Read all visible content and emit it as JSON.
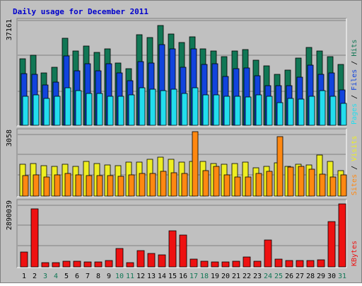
{
  "chart_data": {
    "type": "bar",
    "title": "Daily usage for December 2011",
    "categories": [
      "1",
      "2",
      "3",
      "4",
      "5",
      "6",
      "7",
      "8",
      "9",
      "10",
      "11",
      "12",
      "13",
      "14",
      "15",
      "16",
      "17",
      "18",
      "19",
      "20",
      "21",
      "22",
      "23",
      "24",
      "25",
      "26",
      "27",
      "28",
      "29",
      "30",
      "31"
    ],
    "weekend_days": [
      "3",
      "4",
      "10",
      "11",
      "17",
      "18",
      "24",
      "25",
      "31"
    ],
    "panels": [
      {
        "id": "hits",
        "ymax": 37161,
        "ymax_label": "37161",
        "axis_title": [
          "Pages",
          "Files",
          "Hits"
        ],
        "series": [
          {
            "name": "Hits",
            "color": "#117755",
            "values": [
              23500,
              24800,
              18500,
              20500,
              30800,
              26300,
              28100,
              25800,
              27000,
              22100,
              20000,
              32100,
              31200,
              35500,
              32400,
              29400,
              31500,
              27000,
              26400,
              24300,
              26300,
              26800,
              23200,
              21000,
              18200,
              19600,
              23900,
              27700,
              26300,
              24300,
              21600
            ]
          },
          {
            "name": "Files",
            "color": "#1144dd",
            "values": [
              18300,
              18100,
              14200,
              15400,
              24600,
              19400,
              21800,
              19300,
              21800,
              18700,
              15900,
              22600,
              22200,
              28700,
              27100,
              20700,
              27200,
              21700,
              21900,
              17300,
              20000,
              20400,
              17600,
              14100,
              14000,
              14000,
              17100,
              21300,
              18000,
              18700,
              12500
            ]
          },
          {
            "name": "Pages",
            "color": "#22ddee",
            "values": [
              10400,
              10900,
              9600,
              10200,
              13300,
              12300,
              11400,
              11400,
              10400,
              10400,
              10900,
              13300,
              12900,
              12400,
              12900,
              11400,
              13300,
              10900,
              10900,
              10400,
              10400,
              10000,
              10900,
              10400,
              8000,
              9600,
              9300,
              10400,
              12300,
              10400,
              7800
            ]
          }
        ]
      },
      {
        "id": "visits",
        "ymax": 3058,
        "ymax_label": "3058",
        "axis_title": [
          "Sites",
          "Visits"
        ],
        "series": [
          {
            "name": "Visits",
            "color": "#eeee22",
            "values": [
              1480,
              1520,
              1420,
              1380,
              1500,
              1380,
              1620,
              1540,
              1460,
              1420,
              1600,
              1600,
              1720,
              1820,
              1740,
              1600,
              1620,
              1620,
              1540,
              1500,
              1540,
              1600,
              1320,
              1380,
              1560,
              1400,
              1480,
              1460,
              1920,
              1620,
              1180
            ]
          },
          {
            "name": "Sites",
            "color": "#ff8811",
            "values": [
              960,
              1000,
              900,
              1000,
              1080,
              1010,
              980,
              980,
              960,
              940,
              1000,
              1080,
              1080,
              1160,
              1100,
              1050,
              3020,
              1210,
              1400,
              1010,
              910,
              900,
              1080,
              1160,
              2780,
              1370,
              1400,
              1270,
              1030,
              890,
              1000
            ]
          }
        ]
      },
      {
        "id": "kbytes",
        "ymax": 2890039,
        "ymax_label": "2890039",
        "axis_title": [
          "KBytes"
        ],
        "series": [
          {
            "name": "KBytes",
            "color": "#ee1111",
            "values": [
              650000,
              2580000,
              180000,
              180000,
              240000,
              240000,
              220000,
              220000,
              280000,
              830000,
              200000,
              730000,
              610000,
              520000,
              1600000,
              1400000,
              330000,
              260000,
              220000,
              220000,
              240000,
              440000,
              260000,
              1180000,
              330000,
              270000,
              270000,
              270000,
              300000,
              2010000,
              2790000
            ]
          }
        ]
      }
    ],
    "colors": {
      "title": "#0000cc",
      "panel_bg": "#c0c0c0",
      "weekday_label": "#000000",
      "weekend_label": "#117755"
    }
  }
}
